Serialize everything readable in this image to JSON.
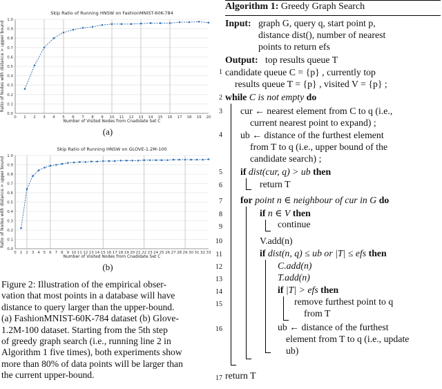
{
  "charts": [
    {
      "title": "Skip Ratio of Running HNSW on FashionMNIST-60K-784",
      "xlabel": "Number of Visited Nodes from Cnadidate Set C",
      "ylabel": "Ratio of Nodes with distance > upper bound",
      "subcaption": "(a)",
      "x_ticks": [
        "0",
        "1",
        "2",
        "3",
        "4",
        "5",
        "6",
        "7",
        "8",
        "9",
        "10",
        "11",
        "12",
        "13",
        "14",
        "15",
        "16",
        "17",
        "18",
        "19",
        "20"
      ],
      "y_ticks": [
        "0.0",
        "0.1",
        "0.2",
        "0.3",
        "0.4",
        "0.5",
        "0.6",
        "0.7",
        "0.8",
        "0.9",
        "1.0"
      ],
      "vlines": [
        3,
        5,
        10,
        13,
        16
      ]
    },
    {
      "title": "Skip Ratio of Running HNSW on GLOVE-1.2M-100",
      "xlabel": "Number of Visited Nodes from Cnadidate Set C",
      "ylabel": "Ratio of Nodes with distance > upper bound",
      "subcaption": "(b)",
      "x_ticks": [
        "0",
        "1",
        "2",
        "3",
        "4",
        "5",
        "6",
        "7",
        "8",
        "9",
        "10",
        "11",
        "12",
        "13",
        "14",
        "15",
        "16",
        "17",
        "18",
        "19",
        "20",
        "21",
        "22",
        "23",
        "24",
        "25",
        "26",
        "27",
        "28",
        "29",
        "30",
        "31",
        "32",
        "33"
      ],
      "y_ticks": [
        "0.0",
        "0.1",
        "0.2",
        "0.3",
        "0.4",
        "0.5",
        "0.6",
        "0.7",
        "0.8",
        "0.9",
        "1.0"
      ],
      "vlines": [
        2,
        6,
        15,
        22,
        29
      ]
    }
  ],
  "chart_data": [
    {
      "type": "line",
      "title": "Skip Ratio of Running HNSW on FashionMNIST-60K-784",
      "xlabel": "Number of Visited Nodes from Cnadidate Set C",
      "ylabel": "Ratio of Nodes with distance > upper bound",
      "xlim": [
        0,
        20
      ],
      "ylim": [
        0,
        1.0
      ],
      "x": [
        1,
        2,
        3,
        4,
        5,
        6,
        7,
        8,
        9,
        10,
        11,
        12,
        13,
        14,
        15,
        16,
        17,
        18,
        19,
        20
      ],
      "values": [
        0.26,
        0.51,
        0.7,
        0.8,
        0.86,
        0.89,
        0.91,
        0.92,
        0.94,
        0.95,
        0.95,
        0.95,
        0.955,
        0.96,
        0.96,
        0.96,
        0.97,
        0.97,
        0.975,
        0.965
      ]
    },
    {
      "type": "line",
      "title": "Skip Ratio of Running HNSW on GLOVE-1.2M-100",
      "xlabel": "Number of Visited Nodes from Cnadidate Set C",
      "ylabel": "Ratio of Nodes with distance > upper bound",
      "xlim": [
        0,
        33
      ],
      "ylim": [
        0,
        1.0
      ],
      "x": [
        1,
        2,
        3,
        4,
        5,
        6,
        7,
        8,
        9,
        10,
        11,
        12,
        13,
        14,
        15,
        16,
        17,
        18,
        19,
        20,
        21,
        22,
        23,
        24,
        25,
        26,
        27,
        28,
        29,
        30,
        31,
        32,
        33
      ],
      "values": [
        0.22,
        0.64,
        0.78,
        0.84,
        0.87,
        0.89,
        0.9,
        0.91,
        0.92,
        0.925,
        0.93,
        0.93,
        0.935,
        0.935,
        0.94,
        0.94,
        0.94,
        0.945,
        0.945,
        0.945,
        0.945,
        0.95,
        0.95,
        0.95,
        0.95,
        0.95,
        0.955,
        0.955,
        0.955,
        0.955,
        0.955,
        0.955,
        0.96
      ]
    }
  ],
  "caption": {
    "lines": [
      "Figure 2:  Illustration of the empirical obser-",
      "vation that most points in a database will have",
      "distance to query larger than the upper-bound.",
      "(a) FashionMNIST-60K-784 dataset (b) Glove-",
      "1.2M-100 dataset.  Starting from the 5th step",
      "of greedy graph search (i.e., running line 2 in",
      "Algorithm 1 five times), both experiments show",
      "more than 80% of data points will be larger than",
      "the current upper-bound."
    ]
  },
  "algorithm": {
    "label": "Algorithm 1:",
    "name": "Greedy Graph Search",
    "input_kw": "Input:",
    "input_lines": [
      "graph G, query q, start point p,",
      "distance dist(), number of nearest",
      "points to return efs"
    ],
    "output_kw": "Output:",
    "output_text": "top results queue T",
    "lines": [
      {
        "n": "1",
        "parts": [
          "candidate queue C = {p} , currently top",
          "results queue T = {p} , visited V = {p} ;"
        ]
      },
      {
        "n": "2",
        "kw": "while",
        "it": "C is not empty",
        "kw2": "do"
      },
      {
        "n": "3",
        "parts": [
          "cur ← nearest element from C to q (i.e.,",
          "current nearest point to expand) ;"
        ]
      },
      {
        "n": "4",
        "parts": [
          "ub ← distance of the furthest element",
          "from T to q (i.e., upper bound of the",
          "candidate search) ;"
        ]
      },
      {
        "n": "5",
        "kw": "if",
        "it": "dist(cur, q) > ub",
        "kw2": "then"
      },
      {
        "n": "6",
        "text": "return T"
      },
      {
        "n": "7",
        "kw": "for",
        "it": "point n ∈ neighbour of cur in G",
        "kw2": "do"
      },
      {
        "n": "8",
        "kw": "if",
        "it": "n ∈ V",
        "kw2": "then"
      },
      {
        "n": "9",
        "text": "continue"
      },
      {
        "n": "10",
        "text": "V.add(n)"
      },
      {
        "n": "11",
        "kw": "if",
        "it": "dist(n, q) ≤ ub or |T| ≤ efs",
        "kw2": "then"
      },
      {
        "n": "12",
        "text": "C.add(n)"
      },
      {
        "n": "13",
        "text": "T.add(n)"
      },
      {
        "n": "14",
        "kw": "if",
        "it": "|T| > efs",
        "kw2": "then"
      },
      {
        "n": "15",
        "parts": [
          "remove furthest point to q",
          "from T"
        ]
      },
      {
        "n": "16",
        "parts": [
          "ub ← distance of the furthest",
          "element from T to q (i.e., update",
          "ub)"
        ]
      },
      {
        "n": "17",
        "text": "return T"
      }
    ]
  }
}
